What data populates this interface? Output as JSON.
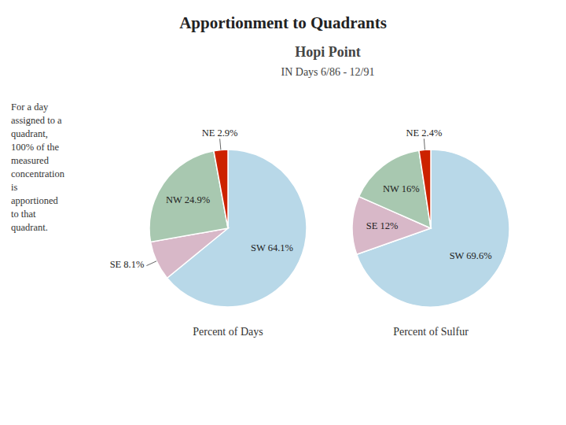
{
  "title": "Apportionment to Quadrants",
  "subtitle": [
    "Hopi Point",
    "IN Days 6/86 - 12/91"
  ],
  "annotations": [
    "For a day\nassigned to a\nquadrant,\n100% of the\nmeasured\nconcentration\nis\napportioned\nto that\nquadrant."
  ],
  "chart_data": [
    {
      "type": "pie",
      "title": "Percent of Days",
      "values": [
        64.1,
        8.1,
        24.9,
        2.9
      ],
      "value_labels": [
        "SW 64.1%",
        "SE 8.1%",
        "NW 24.9%",
        "NE 2.9%"
      ],
      "colors": [
        "#b8d8e8",
        "#d8b8c8",
        "#a8c8b0",
        "#cc2200"
      ],
      "data_labels": true
    },
    {
      "type": "pie",
      "title": "Percent of Sulfur",
      "values": [
        69.6,
        12.0,
        16.0,
        2.4
      ],
      "value_labels": [
        "SW 69.6%",
        "SE 12%",
        "NW 16%",
        "NE 2.4%"
      ],
      "colors": [
        "#b8d8e8",
        "#d8b8c8",
        "#a8c8b0",
        "#cc2200"
      ],
      "data_labels": true
    }
  ]
}
